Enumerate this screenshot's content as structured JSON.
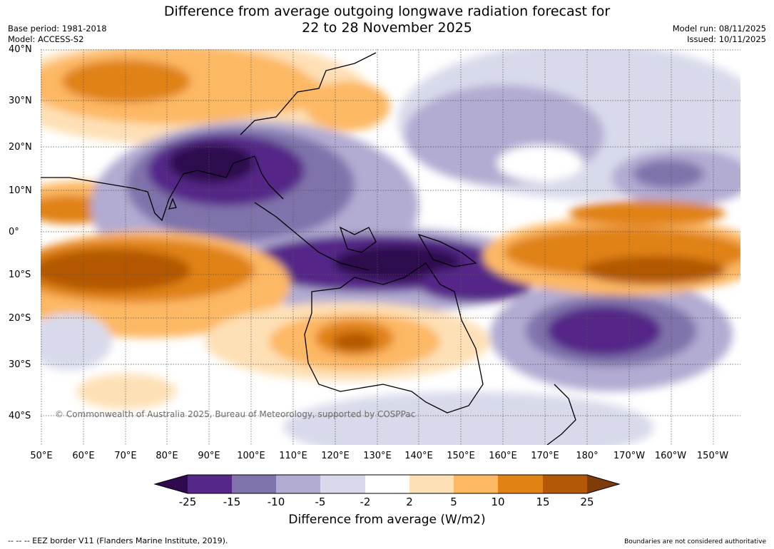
{
  "title_line1": "Difference from average outgoing longwave radiation forecast for",
  "title_line2": "22 to 28 November 2025",
  "base_period": "Base period: 1981-2018",
  "model": "Model: ACCESS-S2",
  "model_run": "Model run: 08/11/2025",
  "issued": "Issued: 10/11/2025",
  "copyright": "© Commonwealth of Australia 2025, Bureau of Meteorology, supported by COSPPac",
  "lat_labels": [
    "40°N",
    "30°N",
    "20°N",
    "10°N",
    "0°",
    "10°S",
    "20°S",
    "30°S",
    "40°S"
  ],
  "lon_labels": [
    "50°E",
    "60°E",
    "70°E",
    "80°E",
    "90°E",
    "100°E",
    "110°E",
    "120°E",
    "130°E",
    "140°E",
    "150°E",
    "160°E",
    "170°E",
    "180°",
    "170°W",
    "160°W",
    "150°W"
  ],
  "colorbar": {
    "title": "Difference from average (W/m2)",
    "tick_labels": [
      "-25",
      "-15",
      "-10",
      "-5",
      "-2",
      "2",
      "5",
      "10",
      "15",
      "25"
    ],
    "colors": [
      "#2f0a4f",
      "#542788",
      "#8073ac",
      "#b2abd2",
      "#d8daeb",
      "#ffffff",
      "#fee0b6",
      "#fdb863",
      "#e08214",
      "#b35806",
      "#7f3b08"
    ]
  },
  "footer_left": "--  --  -- EEZ border V11 (Flanders Marine Institute, 2019).",
  "footer_right": "Boundaries are not considered authoritative"
}
